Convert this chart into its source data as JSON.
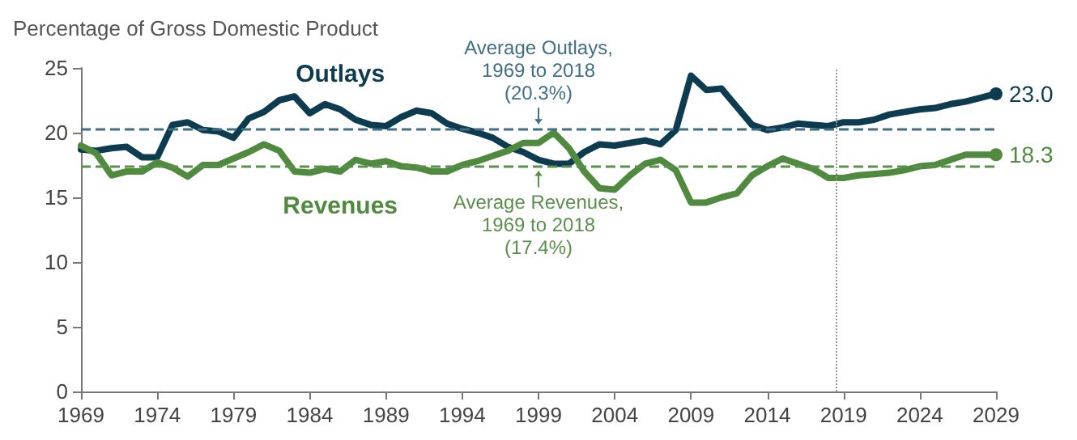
{
  "chart_data": {
    "type": "line",
    "ylabel": "Percentage of Gross Domestic Product",
    "x": [
      1969,
      1970,
      1971,
      1972,
      1973,
      1974,
      1975,
      1976,
      1977,
      1978,
      1979,
      1980,
      1981,
      1982,
      1983,
      1984,
      1985,
      1986,
      1987,
      1988,
      1989,
      1990,
      1991,
      1992,
      1993,
      1994,
      1995,
      1996,
      1997,
      1998,
      1999,
      2000,
      2001,
      2002,
      2003,
      2004,
      2005,
      2006,
      2007,
      2008,
      2009,
      2010,
      2011,
      2012,
      2013,
      2014,
      2015,
      2016,
      2017,
      2018,
      2019,
      2020,
      2021,
      2022,
      2023,
      2024,
      2025,
      2026,
      2027,
      2028,
      2029
    ],
    "series": [
      {
        "name": "Outlays",
        "color": "#0d3b50",
        "values": [
          18.7,
          18.6,
          18.8,
          18.9,
          18.1,
          18.1,
          20.6,
          20.8,
          20.2,
          20.1,
          19.6,
          21.1,
          21.6,
          22.5,
          22.8,
          21.5,
          22.2,
          21.8,
          21.0,
          20.6,
          20.5,
          21.2,
          21.7,
          21.5,
          20.7,
          20.3,
          20.0,
          19.6,
          18.9,
          18.5,
          17.9,
          17.6,
          17.6,
          18.5,
          19.1,
          19.0,
          19.2,
          19.4,
          19.1,
          20.2,
          24.4,
          23.3,
          23.4,
          22.0,
          20.6,
          20.2,
          20.4,
          20.7,
          20.6,
          20.5,
          20.8,
          20.8,
          21.0,
          21.4,
          21.6,
          21.8,
          21.9,
          22.2,
          22.4,
          22.7,
          23.0
        ],
        "value_labels": [
          null,
          null,
          null,
          null,
          null,
          null,
          null,
          null,
          null,
          null,
          null,
          null,
          null,
          null,
          null,
          null,
          null,
          null,
          null,
          null,
          null,
          null,
          null,
          null,
          null,
          null,
          null,
          null,
          null,
          null,
          null,
          null,
          null,
          null,
          null,
          null,
          null,
          null,
          null,
          null,
          null,
          null,
          null,
          null,
          null,
          null,
          null,
          null,
          null,
          null,
          null,
          null,
          null,
          null,
          null,
          null,
          null,
          null,
          null,
          null,
          "23.0"
        ]
      },
      {
        "name": "Revenues",
        "color": "#4f8a3f",
        "values": [
          19.0,
          18.4,
          16.7,
          17.0,
          17.0,
          17.7,
          17.3,
          16.6,
          17.5,
          17.5,
          18.0,
          18.5,
          19.1,
          18.6,
          17.0,
          16.9,
          17.2,
          17.0,
          17.9,
          17.6,
          17.8,
          17.4,
          17.3,
          17.0,
          17.0,
          17.5,
          17.8,
          18.2,
          18.6,
          19.2,
          19.2,
          20.0,
          18.8,
          17.0,
          15.7,
          15.6,
          16.7,
          17.6,
          17.9,
          17.1,
          14.6,
          14.6,
          15.0,
          15.3,
          16.7,
          17.4,
          18.0,
          17.6,
          17.2,
          16.5,
          16.5,
          16.7,
          16.8,
          16.9,
          17.1,
          17.4,
          17.5,
          17.9,
          18.3,
          18.3,
          18.3
        ],
        "value_labels": [
          null,
          null,
          null,
          null,
          null,
          null,
          null,
          null,
          null,
          null,
          null,
          null,
          null,
          null,
          null,
          null,
          null,
          null,
          null,
          null,
          null,
          null,
          null,
          null,
          null,
          null,
          null,
          null,
          null,
          null,
          null,
          null,
          null,
          null,
          null,
          null,
          null,
          null,
          null,
          null,
          null,
          null,
          null,
          null,
          null,
          null,
          null,
          null,
          null,
          null,
          null,
          null,
          null,
          null,
          null,
          null,
          null,
          null,
          null,
          null,
          "18.3"
        ]
      }
    ],
    "xlim": [
      1969,
      2029
    ],
    "xticks": [
      1969,
      1974,
      1979,
      1984,
      1989,
      1994,
      1999,
      2004,
      2009,
      2014,
      2019,
      2024,
      2029
    ],
    "ylim": [
      0,
      25
    ],
    "yticks": [
      0,
      5,
      10,
      15,
      20,
      25
    ],
    "ref_lines": [
      {
        "axis": "y",
        "value": 20.3,
        "color": "#3f6f86",
        "line_style": "dashed"
      },
      {
        "axis": "y",
        "value": 17.4,
        "color": "#5b8f4c",
        "line_style": "dashed"
      },
      {
        "axis": "x",
        "value": 2018.5,
        "color": "#999999",
        "line_style": "dotted"
      }
    ],
    "annotations": [
      {
        "text": "Average Outlays,\n1969 to 2018\n(20.3%)",
        "x": 1999,
        "y": 20.3
      },
      {
        "text": "Average Revenues,\n1969 to 2018\n(17.4%)",
        "x": 1999,
        "y": 17.4
      }
    ],
    "grid": false,
    "legend": false,
    "line_style": "solid"
  }
}
